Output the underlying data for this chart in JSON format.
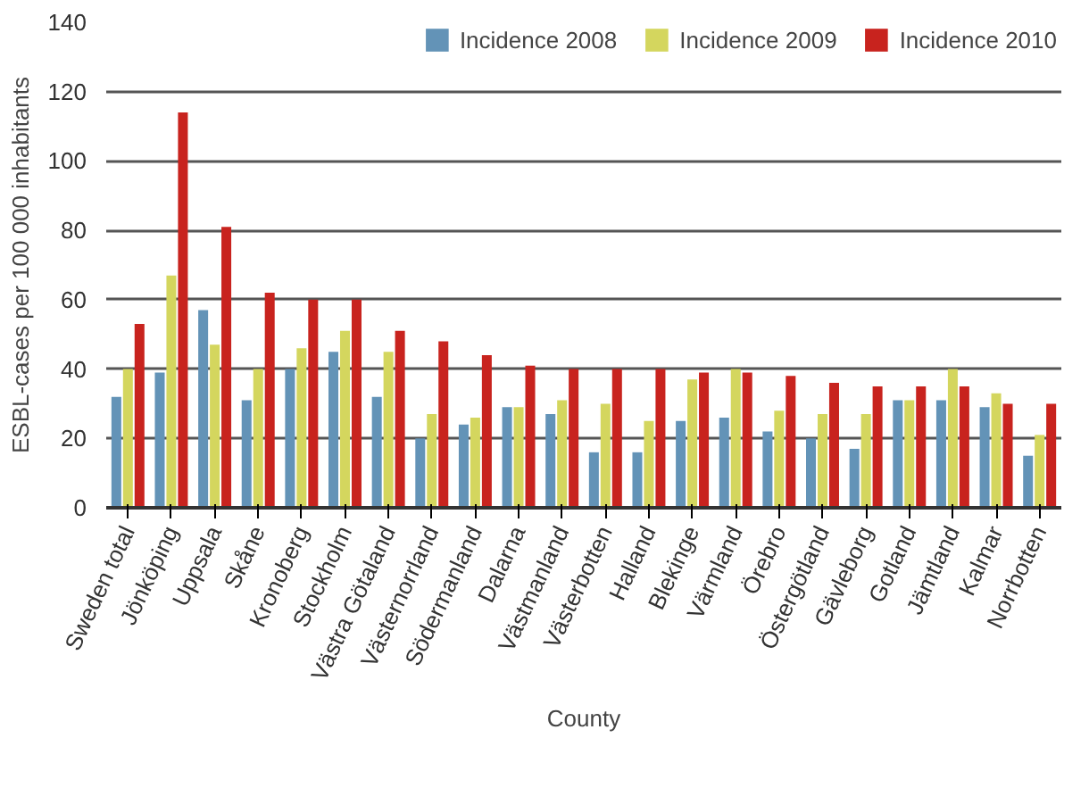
{
  "chart_data": {
    "type": "bar",
    "xlabel": "County",
    "ylabel": "ESBL-cases per 100 000 inhabitants",
    "categories": [
      "Sweden total",
      "Jönköping",
      "Uppsala",
      "Skåne",
      "Kronoberg",
      "Stockholm",
      "Västra Götaland",
      "Västernorrland",
      "Södermanland",
      "Dalarna",
      "Västmanland",
      "Västerbotten",
      "Halland",
      "Blekinge",
      "Värmland",
      "Örebro",
      "Östergötland",
      "Gävleborg",
      "Gotland",
      "Jämtland",
      "Kalmar",
      "Norrbotten"
    ],
    "series": [
      {
        "name": "Incidence 2008",
        "color": "#6393b7",
        "values": [
          32,
          39,
          57,
          31,
          40,
          45,
          32,
          20,
          24,
          29,
          27,
          16,
          16,
          25,
          26,
          22,
          20,
          17,
          31,
          31,
          29,
          15
        ]
      },
      {
        "name": "Incidence 2009",
        "color": "#d4d65e",
        "values": [
          40,
          67,
          47,
          40,
          46,
          51,
          45,
          27,
          26,
          29,
          31,
          30,
          25,
          37,
          40,
          28,
          27,
          27,
          31,
          40,
          33,
          21
        ]
      },
      {
        "name": "Incidence 2010",
        "color": "#c8231e",
        "values": [
          53,
          114,
          81,
          62,
          60,
          60,
          51,
          48,
          44,
          41,
          40,
          40,
          40,
          39,
          39,
          38,
          36,
          35,
          35,
          35,
          30,
          30
        ]
      }
    ],
    "ylim": [
      0,
      140
    ],
    "yticks": [
      0,
      20,
      40,
      60,
      80,
      100,
      120,
      140
    ],
    "grid": "y",
    "legend": "top right"
  }
}
